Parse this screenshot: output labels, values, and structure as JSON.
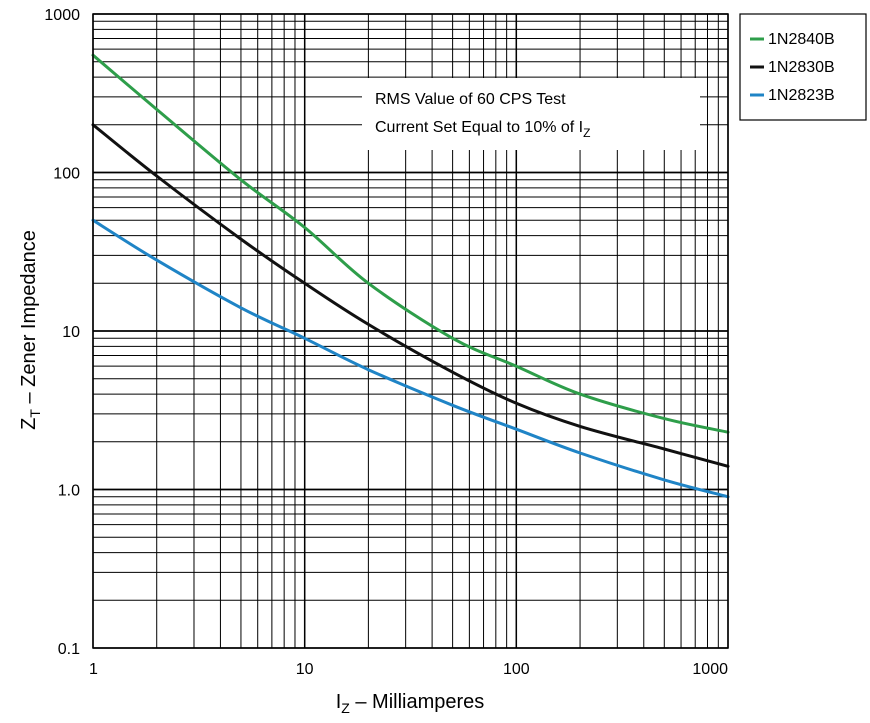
{
  "chart_data": {
    "type": "line",
    "x_scale": "log",
    "y_scale": "log",
    "xlim": [
      1,
      1000
    ],
    "ylim": [
      0.1,
      1000
    ],
    "grid": true,
    "x_ticks": [
      "1",
      "10",
      "100",
      "1000"
    ],
    "y_ticks": [
      "0.1",
      "1.0",
      "10",
      "100",
      "1000"
    ],
    "xlabel": {
      "main": "I",
      "sub": "Z",
      "rest": " – Milliamperes"
    },
    "ylabel": {
      "main": "Z",
      "sub": "T",
      "rest": " – Zener Impedance"
    },
    "annotation": {
      "line1": "RMS Value of 60 CPS Test",
      "line2_main": "Current Set Equal to 10% of I",
      "line2_sub": "Z"
    },
    "legend_position": "top-right, outside",
    "series": [
      {
        "name": "1N2840B",
        "color": "#2e9e4a",
        "x": [
          1,
          2,
          5,
          10,
          20,
          50,
          100,
          200,
          500,
          1000
        ],
        "y": [
          550,
          250,
          90,
          45,
          20,
          9,
          6,
          4,
          2.8,
          2.3
        ]
      },
      {
        "name": "1N2830B",
        "color": "#111111",
        "x": [
          1,
          2,
          5,
          10,
          20,
          50,
          100,
          200,
          500,
          1000
        ],
        "y": [
          200,
          95,
          38,
          20,
          11,
          5.5,
          3.5,
          2.5,
          1.8,
          1.4
        ]
      },
      {
        "name": "1N2823B",
        "color": "#1f84c6",
        "x": [
          1,
          2,
          5,
          10,
          20,
          50,
          100,
          200,
          500,
          1000
        ],
        "y": [
          50,
          28,
          14,
          9,
          5.7,
          3.4,
          2.4,
          1.7,
          1.15,
          0.9
        ]
      }
    ]
  }
}
